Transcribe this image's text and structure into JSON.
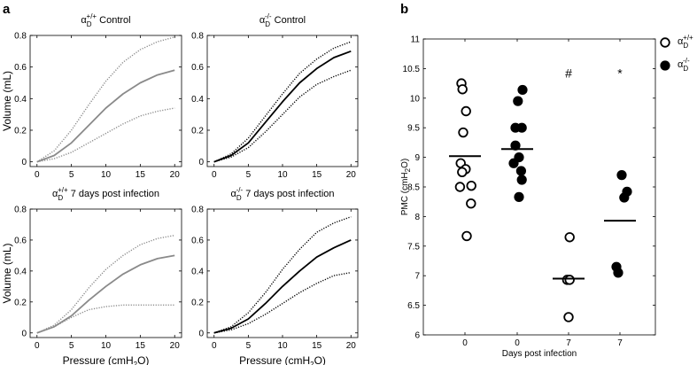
{
  "chart_data": [
    {
      "panel": "a",
      "type": "line",
      "xlabel": "Pressure (cmH2O)",
      "ylabel": "Volume (mL)",
      "xlim": [
        -1,
        21
      ],
      "ylim": [
        -0.03,
        0.8
      ],
      "xticks": [
        0,
        5,
        10,
        15,
        20
      ],
      "yticks": [
        0,
        0.2,
        0.4,
        0.6,
        0.8
      ],
      "subplots": [
        {
          "title": {
            "greek": "α",
            "sub": "D",
            "sup": "+/+",
            "rest": " Control"
          },
          "color": "#8a8a8a",
          "x": [
            0,
            2.5,
            5,
            7.5,
            10,
            12.5,
            15,
            17.5,
            20
          ],
          "series": [
            {
              "name": "mean",
              "style": "solid",
              "values": [
                0,
                0.04,
                0.12,
                0.23,
                0.34,
                0.43,
                0.5,
                0.55,
                0.58
              ]
            },
            {
              "name": "upper",
              "style": "dotted",
              "values": [
                0,
                0.07,
                0.2,
                0.36,
                0.51,
                0.63,
                0.71,
                0.76,
                0.79
              ]
            },
            {
              "name": "lower",
              "style": "dotted",
              "values": [
                0,
                0.02,
                0.06,
                0.12,
                0.18,
                0.24,
                0.29,
                0.32,
                0.34
              ]
            }
          ]
        },
        {
          "title": {
            "greek": "α",
            "sub": "D",
            "sup": "-/-",
            "rest": " Control"
          },
          "color": "#000000",
          "x": [
            0,
            2.5,
            5,
            7.5,
            10,
            12.5,
            15,
            17.5,
            20
          ],
          "series": [
            {
              "name": "mean",
              "style": "solid",
              "values": [
                0,
                0.04,
                0.12,
                0.25,
                0.38,
                0.5,
                0.59,
                0.66,
                0.7
              ]
            },
            {
              "name": "upper",
              "style": "dotted",
              "values": [
                0,
                0.05,
                0.15,
                0.29,
                0.43,
                0.56,
                0.65,
                0.72,
                0.76
              ]
            },
            {
              "name": "lower",
              "style": "dotted",
              "values": [
                0,
                0.03,
                0.09,
                0.19,
                0.3,
                0.41,
                0.49,
                0.54,
                0.58
              ]
            }
          ]
        },
        {
          "title": {
            "greek": "α",
            "sub": "D",
            "sup": "+/+",
            "rest": " 7 days post infection"
          },
          "color": "#8a8a8a",
          "x": [
            0,
            2.5,
            5,
            7.5,
            10,
            12.5,
            15,
            17.5,
            20
          ],
          "series": [
            {
              "name": "mean",
              "style": "solid",
              "values": [
                0,
                0.04,
                0.11,
                0.21,
                0.3,
                0.38,
                0.44,
                0.48,
                0.5
              ]
            },
            {
              "name": "upper",
              "style": "dotted",
              "values": [
                0,
                0.05,
                0.15,
                0.29,
                0.41,
                0.5,
                0.57,
                0.61,
                0.63
              ]
            },
            {
              "name": "lower",
              "style": "dotted",
              "values": [
                0,
                0.04,
                0.1,
                0.15,
                0.17,
                0.18,
                0.18,
                0.18,
                0.18
              ]
            }
          ]
        },
        {
          "title": {
            "greek": "α",
            "sub": "D",
            "sup": "-/-",
            "rest": " 7 days post infection"
          },
          "color": "#000000",
          "x": [
            0,
            2.5,
            5,
            7.5,
            10,
            12.5,
            15,
            17.5,
            20
          ],
          "series": [
            {
              "name": "mean",
              "style": "solid",
              "values": [
                0,
                0.03,
                0.09,
                0.19,
                0.3,
                0.4,
                0.49,
                0.55,
                0.6
              ]
            },
            {
              "name": "upper",
              "style": "dotted",
              "values": [
                0,
                0.04,
                0.13,
                0.26,
                0.41,
                0.54,
                0.65,
                0.71,
                0.75
              ]
            },
            {
              "name": "lower",
              "style": "dotted",
              "values": [
                0,
                0.02,
                0.06,
                0.12,
                0.19,
                0.26,
                0.32,
                0.37,
                0.39
              ]
            }
          ]
        }
      ]
    },
    {
      "panel": "b",
      "type": "scatter",
      "xlabel": "Days post infection",
      "ylabel": "PMC (cmH2O)",
      "ylim": [
        6,
        11
      ],
      "yticks": [
        6,
        6.5,
        7,
        7.5,
        8,
        8.5,
        9,
        9.5,
        10,
        10.5,
        11
      ],
      "categories": [
        "0",
        "0",
        "7",
        "7"
      ],
      "legend": [
        {
          "marker": "open",
          "greek": "α",
          "sub": "D",
          "sup": "+/+"
        },
        {
          "marker": "filled",
          "greek": "α",
          "sub": "D",
          "sup": "-/-"
        }
      ],
      "legend_position": "top-right",
      "groups": [
        {
          "category_index": 0,
          "marker": "open",
          "mean": 9.02,
          "points": [
            [
              -0.1,
              10.25
            ],
            [
              -0.07,
              10.15
            ],
            [
              0.03,
              9.78
            ],
            [
              -0.05,
              9.42
            ],
            [
              -0.12,
              8.9
            ],
            [
              0.02,
              8.8
            ],
            [
              -0.08,
              8.75
            ],
            [
              0.18,
              8.52
            ],
            [
              -0.14,
              8.5
            ],
            [
              0.17,
              8.22
            ],
            [
              0.05,
              7.67
            ]
          ]
        },
        {
          "category_index": 1,
          "marker": "filled",
          "mean": 9.14,
          "points": [
            [
              0.15,
              10.14
            ],
            [
              0.02,
              9.95
            ],
            [
              -0.05,
              9.5
            ],
            [
              0.13,
              9.5
            ],
            [
              -0.05,
              9.2
            ],
            [
              -0.1,
              8.9
            ],
            [
              0.05,
              9.0
            ],
            [
              0.11,
              8.77
            ],
            [
              0.13,
              8.62
            ],
            [
              0.05,
              8.33
            ]
          ]
        },
        {
          "category_index": 2,
          "marker": "open",
          "mean": 6.95,
          "points": [
            [
              0.03,
              7.65
            ],
            [
              -0.04,
              6.93
            ],
            [
              0.03,
              6.93
            ],
            [
              0.0,
              6.3
            ]
          ]
        },
        {
          "category_index": 3,
          "marker": "filled",
          "mean": 7.93,
          "points": [
            [
              0.05,
              8.7
            ],
            [
              0.2,
              8.42
            ],
            [
              0.12,
              8.32
            ],
            [
              -0.1,
              7.15
            ],
            [
              -0.05,
              7.05
            ]
          ]
        }
      ],
      "annotations": [
        {
          "text": "#",
          "category_index": 2,
          "y": 10.42
        },
        {
          "text": "*",
          "category_index": 3,
          "y": 10.42
        }
      ]
    }
  ],
  "labels": {
    "panel_a": "a",
    "panel_b": "b"
  }
}
